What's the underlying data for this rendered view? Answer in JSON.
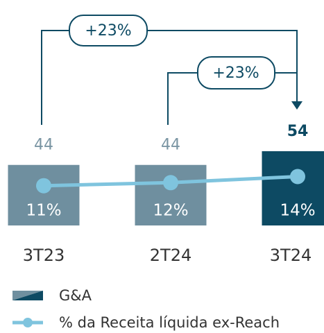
{
  "chart_data": {
    "type": "bar",
    "categories": [
      "3T23",
      "2T24",
      "3T24"
    ],
    "series": [
      {
        "name": "G&A",
        "type": "bar",
        "colors": [
          "#6f8f9f",
          "#6f8f9f",
          "#0d4a63"
        ],
        "values": [
          44,
          44,
          54
        ]
      },
      {
        "name": "% da Receita líquida ex-Reach",
        "type": "line",
        "axis": "y2",
        "color": "#7fc4de",
        "values": [
          11,
          12,
          14
        ],
        "value_labels": [
          "11%",
          "12%",
          "14%"
        ]
      }
    ],
    "annotations": [
      "+23%",
      "+23%"
    ],
    "ylim": [
      0,
      60
    ],
    "y2lim": [
      -2,
      25
    ]
  }
}
